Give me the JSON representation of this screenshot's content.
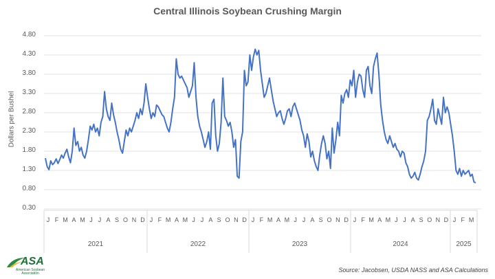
{
  "chart_data": {
    "type": "line",
    "title": "Central Illinois Soybean Crushing Margin",
    "xlabel": "",
    "ylabel": "Dollars per Bushel",
    "ylim": [
      0.3,
      4.8
    ],
    "yticks": [
      "4.80",
      "4.30",
      "3.80",
      "3.30",
      "2.80",
      "2.30",
      "1.80",
      "1.30",
      "0.80",
      "0.30"
    ],
    "grid": true,
    "legend": null,
    "x_month_labels": [
      "J",
      "F",
      "M",
      "A",
      "M",
      "J",
      "J",
      "A",
      "S",
      "O",
      "N",
      "D"
    ],
    "x_year_labels": [
      "2021",
      "2022",
      "2023",
      "2024",
      "2025"
    ],
    "x_final_months_2025": [
      "J",
      "F",
      "M"
    ],
    "series": [
      {
        "name": "Crushing Margin",
        "color": "#4472C4",
        "frequency": "approx. weekly, Jan 2021 – Mar 2025",
        "values": [
          1.62,
          1.4,
          1.32,
          1.55,
          1.45,
          1.5,
          1.6,
          1.48,
          1.58,
          1.7,
          1.62,
          1.75,
          1.85,
          1.65,
          1.5,
          1.8,
          2.4,
          1.95,
          2.05,
          1.8,
          1.9,
          1.7,
          1.62,
          1.8,
          2.1,
          2.45,
          2.35,
          2.5,
          2.3,
          2.4,
          2.2,
          2.55,
          2.7,
          3.35,
          2.9,
          2.7,
          2.6,
          3.05,
          2.75,
          2.55,
          2.3,
          2.1,
          1.85,
          1.75,
          2.05,
          2.35,
          2.2,
          2.4,
          2.3,
          2.45,
          2.6,
          2.8,
          2.65,
          2.9,
          2.75,
          3.05,
          3.55,
          3.2,
          2.9,
          2.65,
          2.8,
          2.7,
          3.0,
          2.95,
          2.85,
          2.75,
          2.7,
          2.55,
          2.4,
          2.3,
          2.55,
          2.9,
          3.2,
          4.2,
          3.8,
          3.7,
          3.75,
          3.65,
          3.55,
          3.45,
          3.2,
          3.35,
          3.5,
          4.1,
          3.2,
          2.7,
          2.45,
          2.3,
          2.1,
          1.9,
          2.05,
          2.3,
          1.85,
          3.05,
          3.15,
          2.2,
          1.8,
          2.0,
          2.55,
          3.7,
          2.7,
          2.6,
          2.45,
          2.55,
          2.3,
          1.9,
          2.1,
          1.15,
          1.1,
          2.05,
          2.3,
          3.9,
          3.5,
          3.6,
          4.3,
          3.9,
          4.25,
          4.45,
          4.3,
          4.42,
          3.9,
          3.55,
          3.2,
          3.3,
          3.5,
          3.7,
          3.4,
          3.1,
          2.9,
          2.7,
          2.8,
          2.85,
          2.65,
          2.5,
          2.65,
          2.85,
          2.9,
          2.7,
          2.95,
          3.05,
          2.9,
          2.75,
          2.6,
          2.35,
          2.2,
          1.9,
          2.25,
          2.05,
          1.65,
          1.8,
          1.55,
          1.4,
          1.3,
          1.7,
          2.0,
          2.2,
          2.0,
          1.6,
          1.8,
          1.35,
          2.4,
          1.75,
          2.1,
          2.55,
          2.2,
          3.25,
          3.05,
          3.3,
          3.4,
          3.2,
          3.65,
          3.5,
          3.9,
          3.2,
          3.6,
          3.8,
          3.75,
          3.4,
          3.2,
          3.9,
          4.0,
          3.5,
          3.3,
          4.0,
          4.2,
          4.35,
          3.8,
          3.0,
          2.6,
          2.3,
          2.1,
          2.0,
          2.2,
          2.05,
          1.9,
          2.0,
          1.85,
          1.8,
          1.65,
          1.8,
          1.75,
          1.5,
          1.4,
          1.2,
          1.1,
          1.15,
          1.25,
          1.1,
          1.05,
          1.2,
          1.4,
          1.55,
          1.8,
          2.6,
          2.7,
          2.9,
          3.15,
          2.6,
          2.5,
          2.9,
          2.7,
          2.5,
          3.2,
          2.8,
          2.95,
          2.8,
          2.5,
          2.2,
          1.8,
          1.3,
          1.2,
          1.35,
          1.15,
          1.3,
          1.2,
          1.25,
          1.3,
          1.15,
          1.2,
          1.0,
          0.98
        ]
      }
    ],
    "annotations": []
  },
  "footer": {
    "source": "Source: Jacobsen, USDA NASS and ASA Calculations",
    "logo_text": "ASA",
    "logo_subtext": "American Soybean Association"
  }
}
